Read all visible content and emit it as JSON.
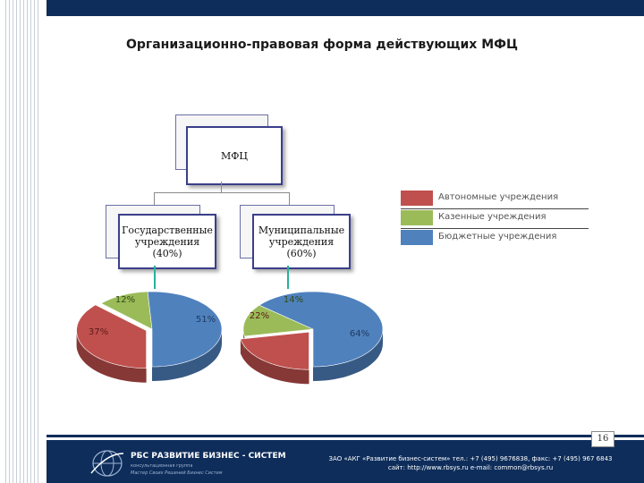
{
  "slide": {
    "title": "Организационно-правовая форма действующих МФЦ",
    "page_number": "16"
  },
  "org_chart": {
    "root": "МФЦ",
    "children": [
      {
        "label_line1": "Государственные",
        "label_line2": "учреждения",
        "label_line3": "(40%)"
      },
      {
        "label_line1": "Муниципальные",
        "label_line2": "учреждения",
        "label_line3": "(60%)"
      }
    ]
  },
  "legend": [
    {
      "label": "Автономные учреждения",
      "color": "#c0504d"
    },
    {
      "label": "Казенные учреждения",
      "color": "#9bbb59"
    },
    {
      "label": "Бюджетные учреждения",
      "color": "#4f81bd"
    }
  ],
  "chart_data": [
    {
      "type": "pie",
      "categories": [
        "Автономные учреждения",
        "Казенные учреждения",
        "Бюджетные учреждения"
      ],
      "values": [
        37,
        12,
        51
      ],
      "labels": [
        "37%",
        "12%",
        "51%"
      ]
    },
    {
      "type": "pie",
      "categories": [
        "Автономные учреждения",
        "Казенные учреждения",
        "Бюджетные учреждения"
      ],
      "values": [
        22,
        14,
        64
      ],
      "labels": [
        "22%",
        "14%",
        "64%"
      ]
    }
  ],
  "footer": {
    "logo_title": "РБС РАЗВИТИЕ БИЗНЕС - СИСТЕМ",
    "logo_subtitle": "консультационная группа",
    "logo_motto": "Мастер Своих Решений Бизнес Систем",
    "contact_line1": "ЗАО «АКГ «Развитие бизнес-систем» тел.: +7 (495) 9676838, факс: +7 (495) 967 6843",
    "contact_line2": "сайт: http://www.rbsys.ru e-mail: common@rbsys.ru"
  }
}
